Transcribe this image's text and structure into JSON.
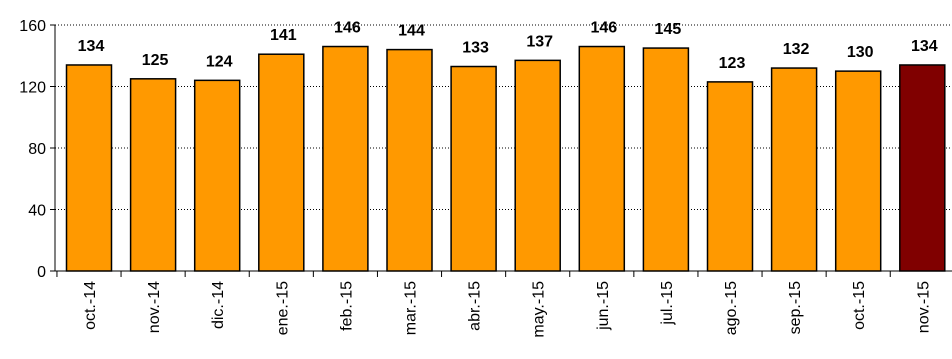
{
  "chart_data": {
    "type": "bar",
    "categories": [
      "oct.-14",
      "nov.-14",
      "dic.-14",
      "ene.-15",
      "feb.-15",
      "mar.-15",
      "abr.-15",
      "may.-15",
      "jun.-15",
      "jul.-15",
      "ago.-15",
      "sep.-15",
      "oct.-15",
      "nov.-15"
    ],
    "values": [
      134,
      125,
      124,
      141,
      146,
      144,
      133,
      137,
      146,
      145,
      123,
      132,
      130,
      134
    ],
    "highlight_index": 13,
    "colors": {
      "bar": "#FF9900",
      "highlight": "#800000"
    },
    "title": "",
    "xlabel": "",
    "ylabel": "",
    "ylim": [
      0,
      160
    ],
    "yticks": [
      0,
      40,
      80,
      120,
      160
    ],
    "grid": true
  }
}
